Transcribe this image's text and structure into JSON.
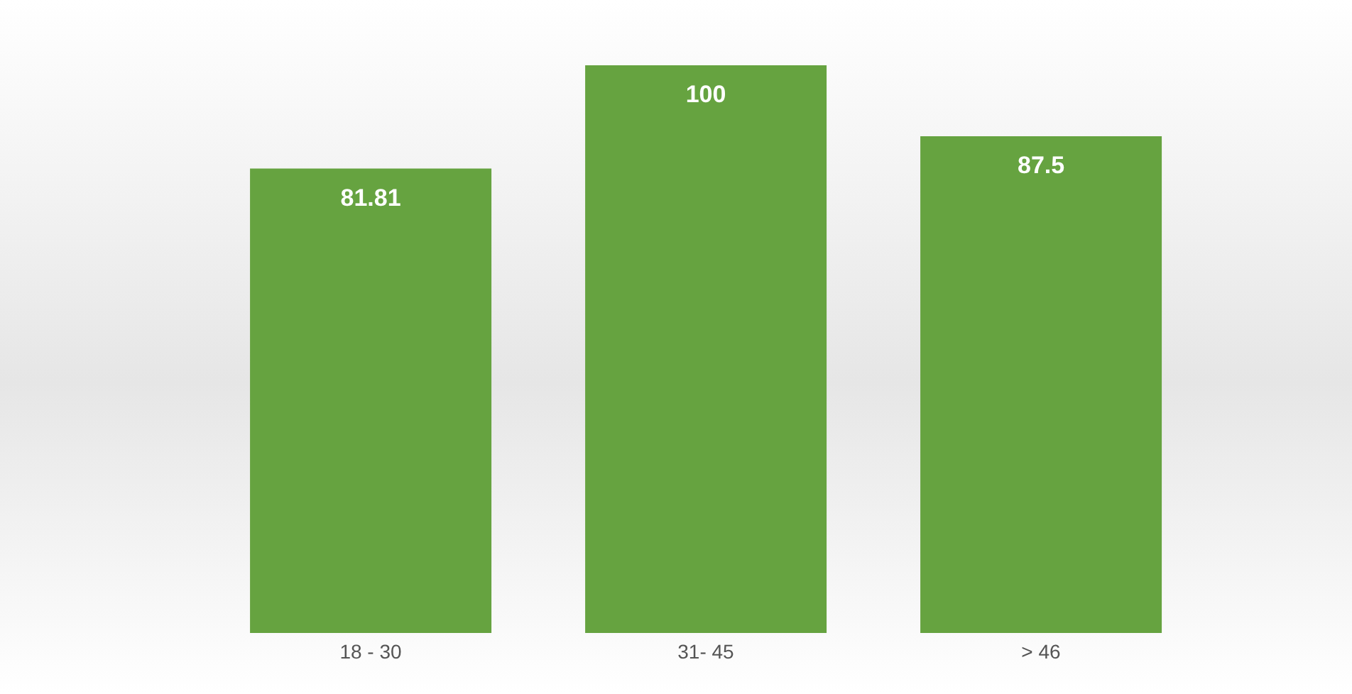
{
  "chart_data": {
    "type": "bar",
    "categories": [
      "18 - 30",
      "31- 45",
      "> 46"
    ],
    "values": [
      81.81,
      100,
      87.5
    ],
    "color": "#66a340",
    "ylim": [
      0,
      100
    ],
    "data_labels": true
  }
}
